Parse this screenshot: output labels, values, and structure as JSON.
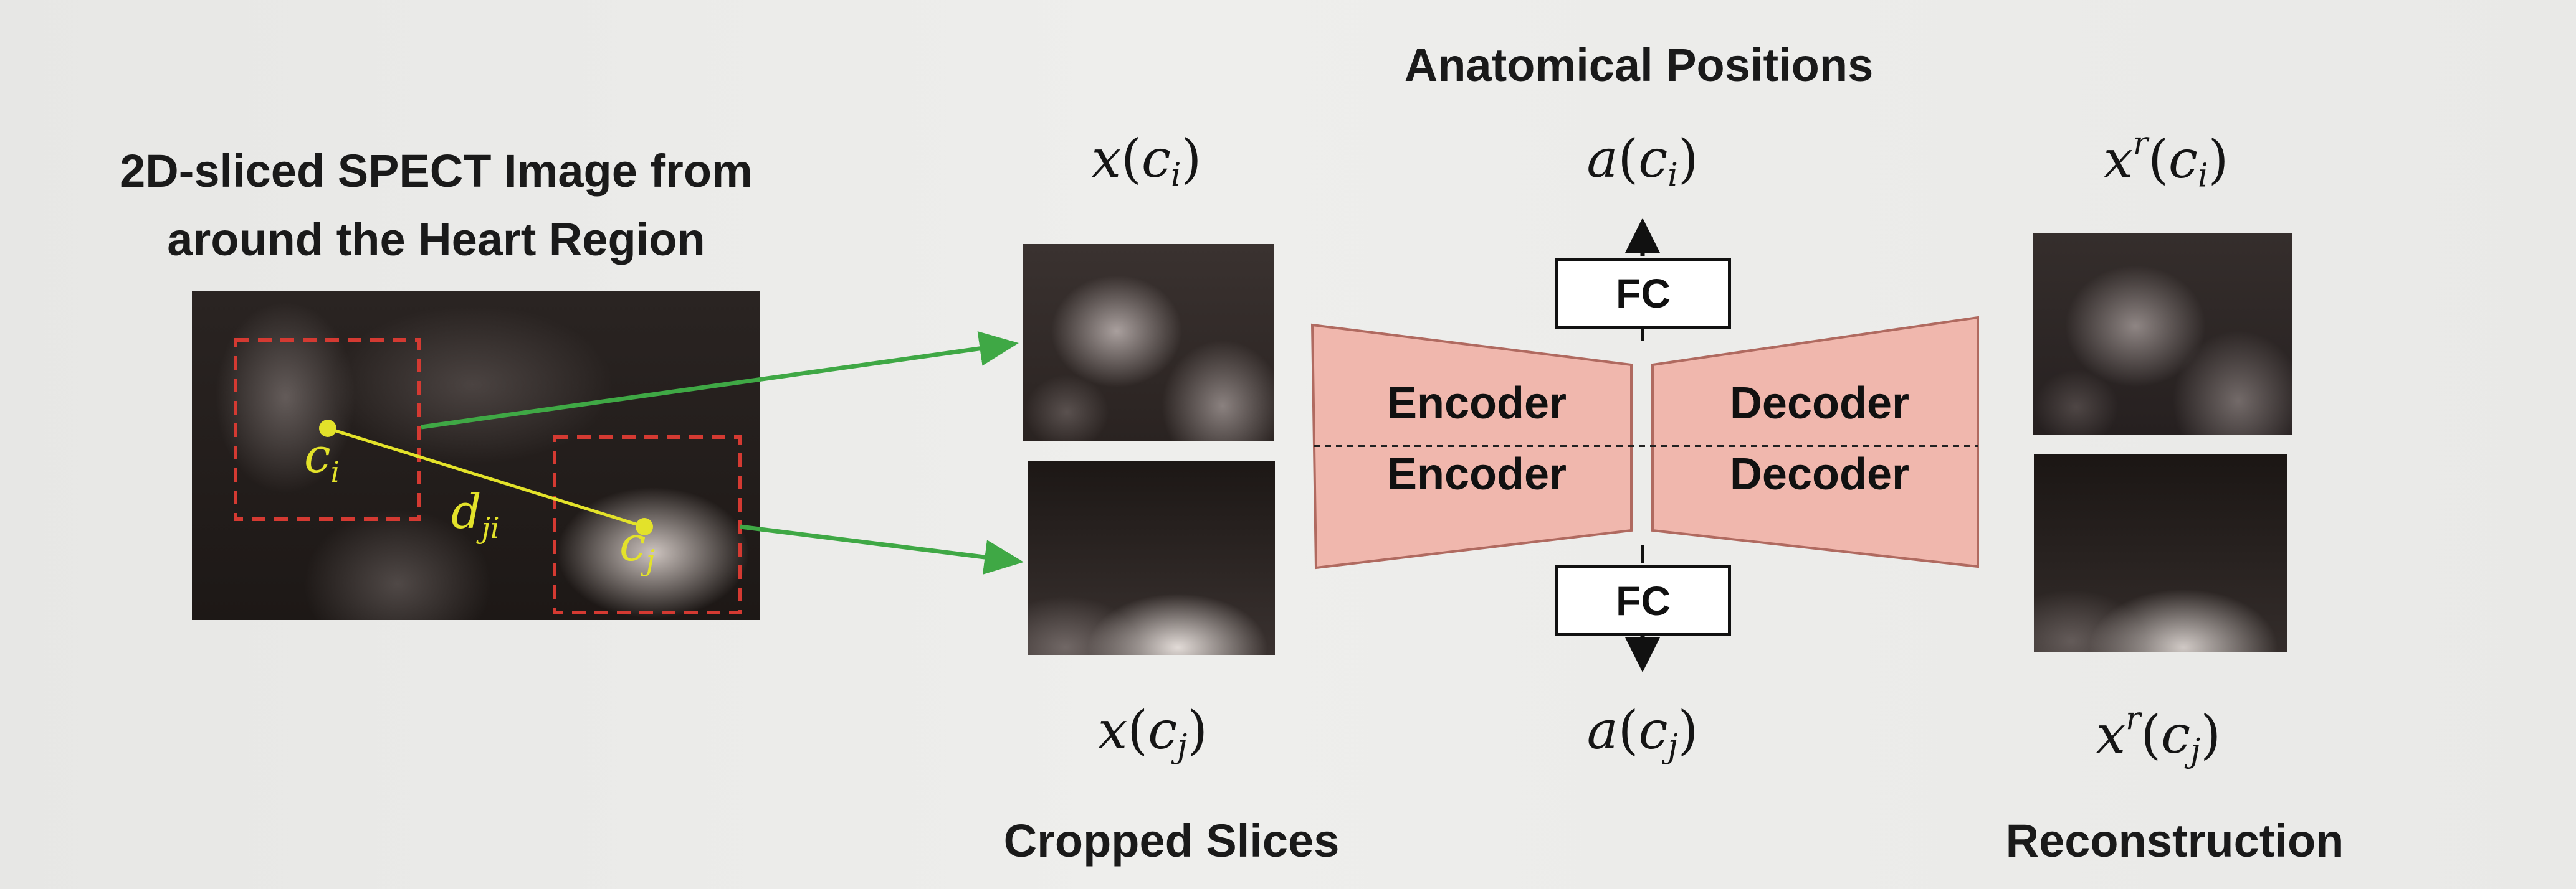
{
  "source_image": {
    "title_line1": "2D-sliced SPECT Image from",
    "title_line2": "around the Heart Region",
    "points": {
      "ci_base": "c",
      "ci_sub": "i",
      "cj_base": "c",
      "cj_sub": "j",
      "dist_base": "d",
      "dist_sub": "ji"
    }
  },
  "cropped": {
    "label": "Cropped Slices",
    "top_math": {
      "base": "x",
      "open": "(",
      "arg": "c",
      "sub": "i",
      "close": ")"
    },
    "bottom_math": {
      "base": "x",
      "open": "(",
      "arg": "c",
      "sub": "j",
      "close": ")"
    }
  },
  "network": {
    "heading": "Anatomical Positions",
    "encoder_top": "Encoder",
    "encoder_bottom": "Encoder",
    "decoder_top": "Decoder",
    "decoder_bottom": "Decoder",
    "fc_top": "FC",
    "fc_bottom": "FC",
    "top_math": {
      "base": "a",
      "open": "(",
      "arg": "c",
      "sub": "i",
      "close": ")"
    },
    "bottom_math": {
      "base": "a",
      "open": "(",
      "arg": "c",
      "sub": "j",
      "close": ")"
    }
  },
  "reconstruction": {
    "label": "Reconstruction",
    "top_math": {
      "base": "x",
      "sup": "r",
      "open": "(",
      "arg": "c",
      "sub": "i",
      "close": ")"
    },
    "bottom_math": {
      "base": "x",
      "sup": "r",
      "open": "(",
      "arg": "c",
      "sub": "j",
      "close": ")"
    }
  },
  "colors": {
    "arrow_green": "#3fa845",
    "point_yellow": "#e3e22a",
    "crop_box_red": "#d43a32",
    "network_fill": "#f0b7ad",
    "network_stroke": "#b06a60"
  }
}
